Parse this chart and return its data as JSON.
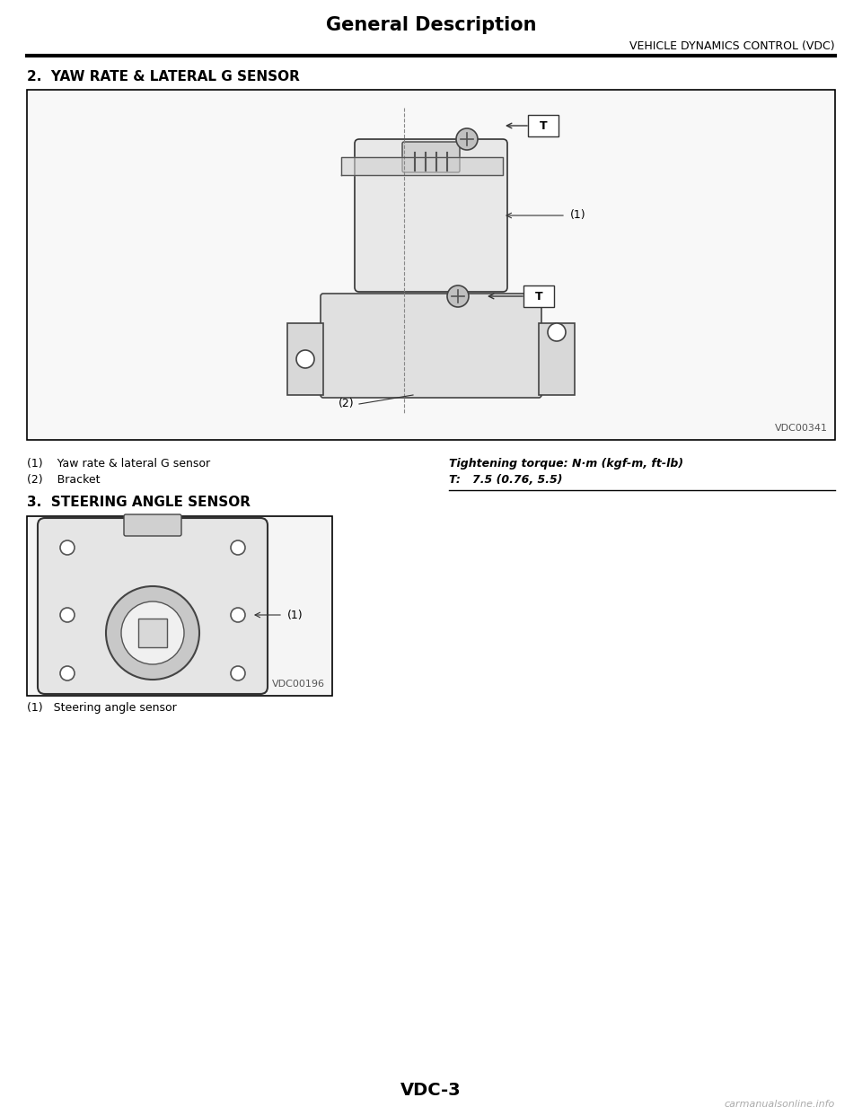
{
  "title": "General Description",
  "subtitle": "VEHICLE DYNAMICS CONTROL (VDC)",
  "section2_title": "2.  YAW RATE & LATERAL G SENSOR",
  "section3_title": "3.  STEERING ANGLE SENSOR",
  "label1": "(1)    Yaw rate & lateral G sensor",
  "label2": "(2)    Bracket",
  "label3": "(1)   Steering angle sensor",
  "torque_title": "Tightening torque: N·m (kgf-m, ft-lb)",
  "torque_value": "T:   7.5 (0.76, 5.5)",
  "page_num": "VDC-3",
  "watermark": "carmanualsonline.info",
  "diagram1_code": "VDC00341",
  "diagram2_code": "VDC00196",
  "bg_color": "#ffffff",
  "text_color": "#000000",
  "border_color": "#000000",
  "light_gray": "#cccccc"
}
